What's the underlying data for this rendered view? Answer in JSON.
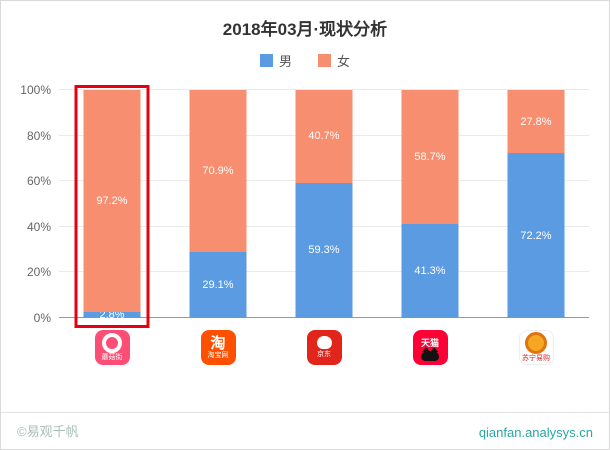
{
  "chart_data": {
    "type": "bar",
    "stacked": true,
    "title": "2018年03月·现状分析",
    "legend_position": "top",
    "grid": true,
    "ylim": [
      0,
      100
    ],
    "yticks": [
      0,
      20,
      40,
      60,
      80,
      100
    ],
    "ytick_labels": [
      "0%",
      "20%",
      "40%",
      "60%",
      "80%",
      "100%"
    ],
    "categories": [
      "蘑菇街",
      "淘宝",
      "京东",
      "天猫",
      "苏宁易购"
    ],
    "series": [
      {
        "name": "男",
        "color": "#5b9be2",
        "values": [
          2.8,
          29.1,
          59.3,
          41.3,
          72.2
        ]
      },
      {
        "name": "女",
        "color": "#f78e6f",
        "values": [
          97.2,
          70.9,
          40.7,
          58.7,
          27.8
        ]
      }
    ],
    "bar_labels": {
      "male": [
        "2.8%",
        "29.1%",
        "59.3%",
        "41.3%",
        "72.2%"
      ],
      "female": [
        "97.2%",
        "70.9%",
        "40.7%",
        "58.7%",
        "27.8%"
      ]
    },
    "highlight": {
      "category_index": 0,
      "style": "red-outline",
      "color": "#e60012"
    }
  },
  "apps": [
    {
      "name": "蘑菇街",
      "icon": "mogujie",
      "bg": "#ff4e75",
      "label": "蘑菇街"
    },
    {
      "name": "淘宝",
      "icon": "taobao",
      "bg": "#ff5000",
      "glyph": "淘",
      "label": "淘宝网"
    },
    {
      "name": "京东",
      "icon": "jd",
      "bg": "#e1251b",
      "label": "京东"
    },
    {
      "name": "天猫",
      "icon": "tmall",
      "bg": "#ff0036",
      "glyph": "天猫"
    },
    {
      "name": "苏宁易购",
      "icon": "suning",
      "bg": "#ffffff",
      "label": "苏宁易购"
    }
  ],
  "footer": {
    "watermark": "©易观千帆",
    "url": "qianfan.analysys.cn"
  }
}
